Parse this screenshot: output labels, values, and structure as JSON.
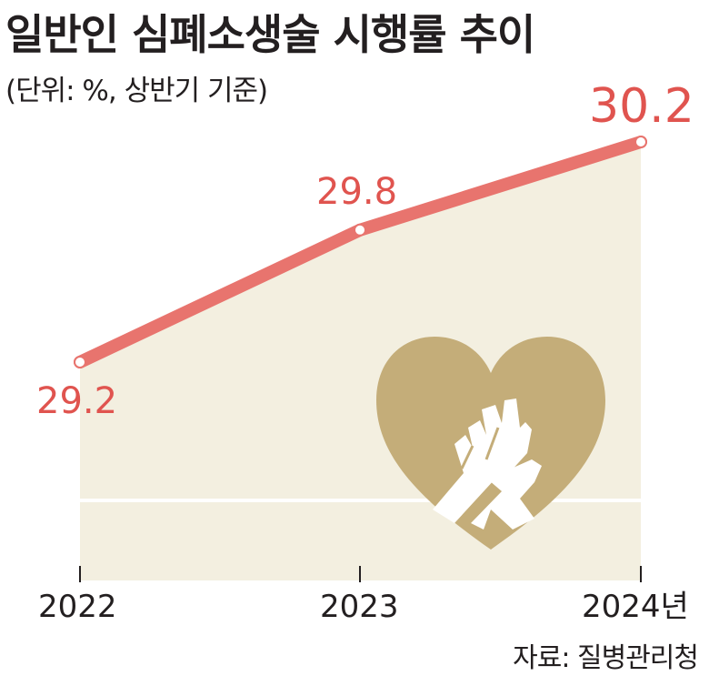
{
  "title": "일반인 심폐소생술 시행률 추이",
  "subtitle": "(단위: %, 상반기 기준)",
  "source": "자료: 질병관리청",
  "colors": {
    "line": "#e8746e",
    "label": "#e0544f",
    "area": "#f3efe0",
    "heart": "#c4ad79",
    "axis": "#231f20"
  },
  "icon": "heart-cpr-hands-icon",
  "chart_data": {
    "type": "area",
    "x": [
      "2022",
      "2023",
      "2024년"
    ],
    "series": [
      {
        "values": [
          29.2,
          29.8,
          30.2
        ]
      }
    ],
    "data_labels": [
      "29.2",
      "29.8",
      "30.2"
    ],
    "xlabel": "",
    "ylabel": "",
    "grid": false
  }
}
